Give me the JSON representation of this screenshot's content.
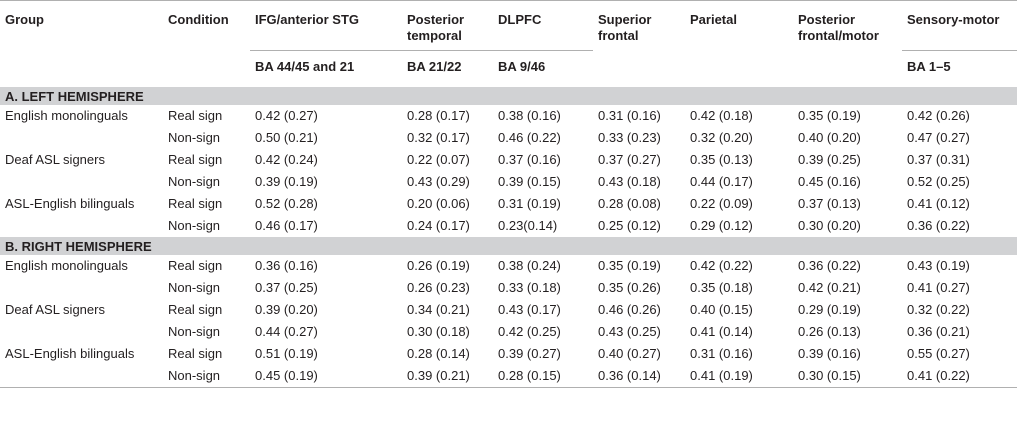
{
  "columns": {
    "group": "Group",
    "condition": "Condition",
    "regions": [
      "IFG/anterior STG",
      "Posterior temporal",
      "DLPFC",
      "Superior frontal",
      "Parietal",
      "Posterior frontal/motor",
      "Sensory-motor"
    ],
    "region_line1": [
      "IFG/anterior STG",
      "Posterior",
      "DLPFC",
      "Superior",
      "Parietal",
      "Posterior",
      "Sensory-motor"
    ],
    "region_line2": [
      "",
      "temporal",
      "",
      "frontal",
      "",
      "frontal/motor",
      ""
    ],
    "ba": [
      "BA 44/45 and 21",
      "BA 21/22",
      "BA 9/46",
      "",
      "",
      "",
      "BA 1–5"
    ]
  },
  "sections": [
    {
      "title": "A. LEFT HEMISPHERE",
      "rows": [
        {
          "group": "English monolinguals",
          "condition": "Real sign",
          "values": [
            "0.42 (0.27)",
            "0.28 (0.17)",
            "0.38 (0.16)",
            "0.31 (0.16)",
            "0.42 (0.18)",
            "0.35 (0.19)",
            "0.42 (0.26)"
          ]
        },
        {
          "group": "",
          "condition": "Non-sign",
          "values": [
            "0.50 (0.21)",
            "0.32 (0.17)",
            "0.46 (0.22)",
            "0.33 (0.23)",
            "0.32 (0.20)",
            "0.40 (0.20)",
            "0.47 (0.27)"
          ]
        },
        {
          "group": "Deaf ASL signers",
          "condition": "Real sign",
          "values": [
            "0.42 (0.24)",
            "0.22 (0.07)",
            "0.37 (0.16)",
            "0.37 (0.27)",
            "0.35 (0.13)",
            "0.39 (0.25)",
            "0.37 (0.31)"
          ]
        },
        {
          "group": "",
          "condition": "Non-sign",
          "values": [
            "0.39 (0.19)",
            "0.43 (0.29)",
            "0.39 (0.15)",
            "0.43 (0.18)",
            "0.44 (0.17)",
            "0.45 (0.16)",
            "0.52 (0.25)"
          ]
        },
        {
          "group": "ASL-English bilinguals",
          "condition": "Real sign",
          "values": [
            "0.52 (0.28)",
            "0.20 (0.06)",
            "0.31 (0.19)",
            "0.28 (0.08)",
            "0.22 (0.09)",
            "0.37 (0.13)",
            "0.41 (0.12)"
          ]
        },
        {
          "group": "",
          "condition": "Non-sign",
          "values": [
            "0.46 (0.17)",
            "0.24 (0.17)",
            "0.23(0.14)",
            "0.25 (0.12)",
            "0.29 (0.12)",
            "0.30 (0.20)",
            "0.36 (0.22)"
          ]
        }
      ]
    },
    {
      "title": "B. RIGHT HEMISPHERE",
      "rows": [
        {
          "group": "English monolinguals",
          "condition": "Real sign",
          "values": [
            "0.36 (0.16)",
            "0.26 (0.19)",
            "0.38 (0.24)",
            "0.35 (0.19)",
            "0.42 (0.22)",
            "0.36 (0.22)",
            "0.43 (0.19)"
          ]
        },
        {
          "group": "",
          "condition": "Non-sign",
          "values": [
            "0.37 (0.25)",
            "0.26 (0.23)",
            "0.33 (0.18)",
            "0.35 (0.26)",
            "0.35 (0.18)",
            "0.42 (0.21)",
            "0.41 (0.27)"
          ]
        },
        {
          "group": "Deaf ASL signers",
          "condition": "Real sign",
          "values": [
            "0.39 (0.20)",
            "0.34 (0.21)",
            "0.43 (0.17)",
            "0.46 (0.26)",
            "0.40 (0.15)",
            "0.29 (0.19)",
            "0.32 (0.22)"
          ]
        },
        {
          "group": "",
          "condition": "Non-sign",
          "values": [
            "0.44 (0.27)",
            "0.30 (0.18)",
            "0.42 (0.25)",
            "0.43 (0.25)",
            "0.41 (0.14)",
            "0.26 (0.13)",
            "0.36 (0.21)"
          ]
        },
        {
          "group": "ASL-English bilinguals",
          "condition": "Real sign",
          "values": [
            "0.51 (0.19)",
            "0.28 (0.14)",
            "0.39 (0.27)",
            "0.40 (0.27)",
            "0.31 (0.16)",
            "0.39 (0.16)",
            "0.55 (0.27)"
          ]
        },
        {
          "group": "",
          "condition": "Non-sign",
          "values": [
            "0.45 (0.19)",
            "0.39 (0.21)",
            "0.28 (0.15)",
            "0.36 (0.14)",
            "0.41 (0.19)",
            "0.30 (0.15)",
            "0.41 (0.22)"
          ]
        }
      ]
    }
  ]
}
